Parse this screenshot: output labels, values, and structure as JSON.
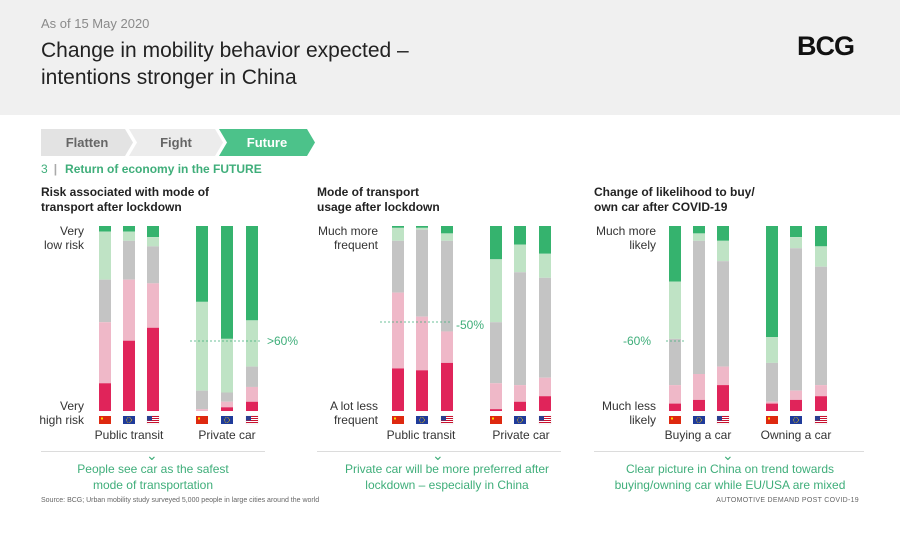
{
  "header": {
    "as_of": "As of 15 May 2020",
    "title_line1": "Change in mobility behavior expected –",
    "title_line2": "intentions stronger in China",
    "logo": "BCG"
  },
  "steps": [
    "Flatten",
    "Fight",
    "Future"
  ],
  "section": {
    "number": "3",
    "label": "Return of economy in the FUTURE"
  },
  "colors": {
    "dark_green": "#35b36e",
    "light_green": "#bfe3c5",
    "gray": "#c4c4c4",
    "pink": "#efb8c8",
    "red": "#e0245a",
    "accent": "#3fae7a"
  },
  "chart_data": [
    {
      "type": "bar",
      "stacked": true,
      "title_line1": "Risk associated with mode of",
      "title_line2": "transport after lockdown",
      "y_top_line1": "Very",
      "y_top_line2": "low risk",
      "y_bottom_line1": "Very",
      "y_bottom_line2": "high risk",
      "series_order": [
        "dark_green",
        "light_green",
        "gray",
        "pink",
        "red"
      ],
      "groups": [
        {
          "name": "Public transit",
          "bars": [
            {
              "country": "China",
              "values": [
                3,
                26,
                23,
                33,
                15
              ]
            },
            {
              "country": "EU",
              "values": [
                3,
                5,
                21,
                33,
                38
              ]
            },
            {
              "country": "USA",
              "values": [
                6,
                5,
                20,
                24,
                45
              ]
            }
          ]
        },
        {
          "name": "Private car",
          "bars": [
            {
              "country": "China",
              "values": [
                41,
                48,
                10,
                1,
                0
              ]
            },
            {
              "country": "EU",
              "values": [
                61,
                29,
                5,
                3,
                2
              ]
            },
            {
              "country": "USA",
              "values": [
                51,
                25,
                11,
                8,
                5
              ]
            }
          ]
        }
      ],
      "annotation": ">60%",
      "conclusion_line1": "People see car as the safest",
      "conclusion_line2": "mode of transportation"
    },
    {
      "type": "bar",
      "stacked": true,
      "title_line1": "Mode of transport",
      "title_line2": "usage after lockdown",
      "y_top_line1": "Much more",
      "y_top_line2": "frequent",
      "y_bottom_line1": "A lot less",
      "y_bottom_line2": "frequent",
      "series_order": [
        "dark_green",
        "light_green",
        "gray",
        "pink",
        "red"
      ],
      "groups": [
        {
          "name": "Public transit",
          "bars": [
            {
              "country": "China",
              "values": [
                1,
                7,
                28,
                41,
                23
              ]
            },
            {
              "country": "EU",
              "values": [
                1,
                1,
                47,
                29,
                22
              ]
            },
            {
              "country": "USA",
              "values": [
                4,
                4,
                49,
                17,
                26
              ]
            }
          ]
        },
        {
          "name": "Private car",
          "bars": [
            {
              "country": "China",
              "values": [
                18,
                34,
                33,
                14,
                1
              ]
            },
            {
              "country": "EU",
              "values": [
                10,
                15,
                61,
                9,
                5
              ]
            },
            {
              "country": "USA",
              "values": [
                15,
                13,
                54,
                10,
                8
              ]
            }
          ]
        }
      ],
      "annotation": "-50%",
      "conclusion_line1": "Private car will be more preferred after",
      "conclusion_line2": "lockdown – especially in China"
    },
    {
      "type": "bar",
      "stacked": true,
      "title_line1": "Change of likelihood to buy/",
      "title_line2": "own car after COVID-19",
      "y_top_line1": "Much more",
      "y_top_line2": "likely",
      "y_bottom_line1": "Much less",
      "y_bottom_line2": "likely",
      "series_order": [
        "dark_green",
        "light_green",
        "gray",
        "pink",
        "red"
      ],
      "groups": [
        {
          "name": "Buying a car",
          "bars": [
            {
              "country": "China",
              "values": [
                30,
                31,
                25,
                10,
                4
              ]
            },
            {
              "country": "EU",
              "values": [
                4,
                4,
                72,
                14,
                6
              ]
            },
            {
              "country": "USA",
              "values": [
                8,
                11,
                57,
                10,
                14
              ]
            }
          ]
        },
        {
          "name": "Owning a car",
          "bars": [
            {
              "country": "China",
              "values": [
                60,
                14,
                21,
                1,
                4
              ]
            },
            {
              "country": "EU",
              "values": [
                6,
                6,
                77,
                5,
                6
              ]
            },
            {
              "country": "USA",
              "values": [
                11,
                11,
                64,
                6,
                8
              ]
            }
          ]
        }
      ],
      "annotation": "-60%",
      "conclusion_line1": "Clear picture in China on trend towards",
      "conclusion_line2": "buying/owning car while EU/USA are mixed"
    }
  ],
  "footer": {
    "source": "Source: BCG; Urban mobility study surveyed 5,000 people in large cities around the world",
    "right": "AUTOMOTIVE DEMAND POST COVID-19"
  }
}
